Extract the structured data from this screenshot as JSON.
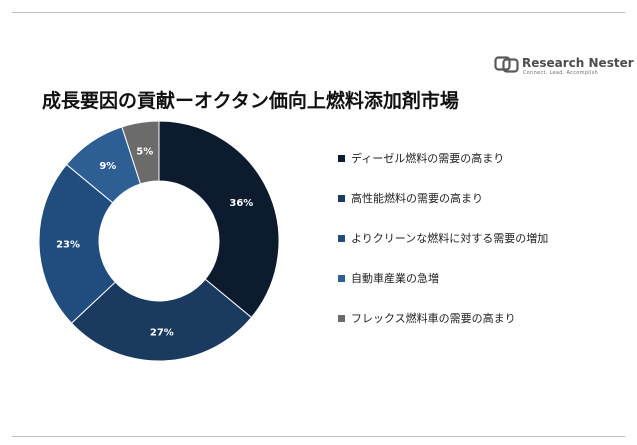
{
  "logo": {
    "name": "Research Nester",
    "tagline": "Connect. Lead. Accomplish"
  },
  "chart_data": {
    "type": "pie",
    "title": "成長要因の貢献ーオクタン価向上燃料添加剤市場",
    "categories": [
      "ディーゼル燃料の需要の高まり",
      "高性能燃料の需要の高まり",
      "よりクリーンな燃料に対する需要の増加",
      "自動車産業の急増",
      "フレックス燃料車の需要の高まり"
    ],
    "values": [
      36,
      27,
      23,
      9,
      5
    ],
    "data_labels": [
      "36%",
      "27%",
      "23%",
      "9%",
      "5%"
    ],
    "colors": [
      "#0d1b2e",
      "#1b3a60",
      "#204d7e",
      "#2e5f94",
      "#6b6b6b"
    ],
    "donut": true,
    "start_angle_deg": 0,
    "direction": "clockwise",
    "legend_position": "right"
  }
}
